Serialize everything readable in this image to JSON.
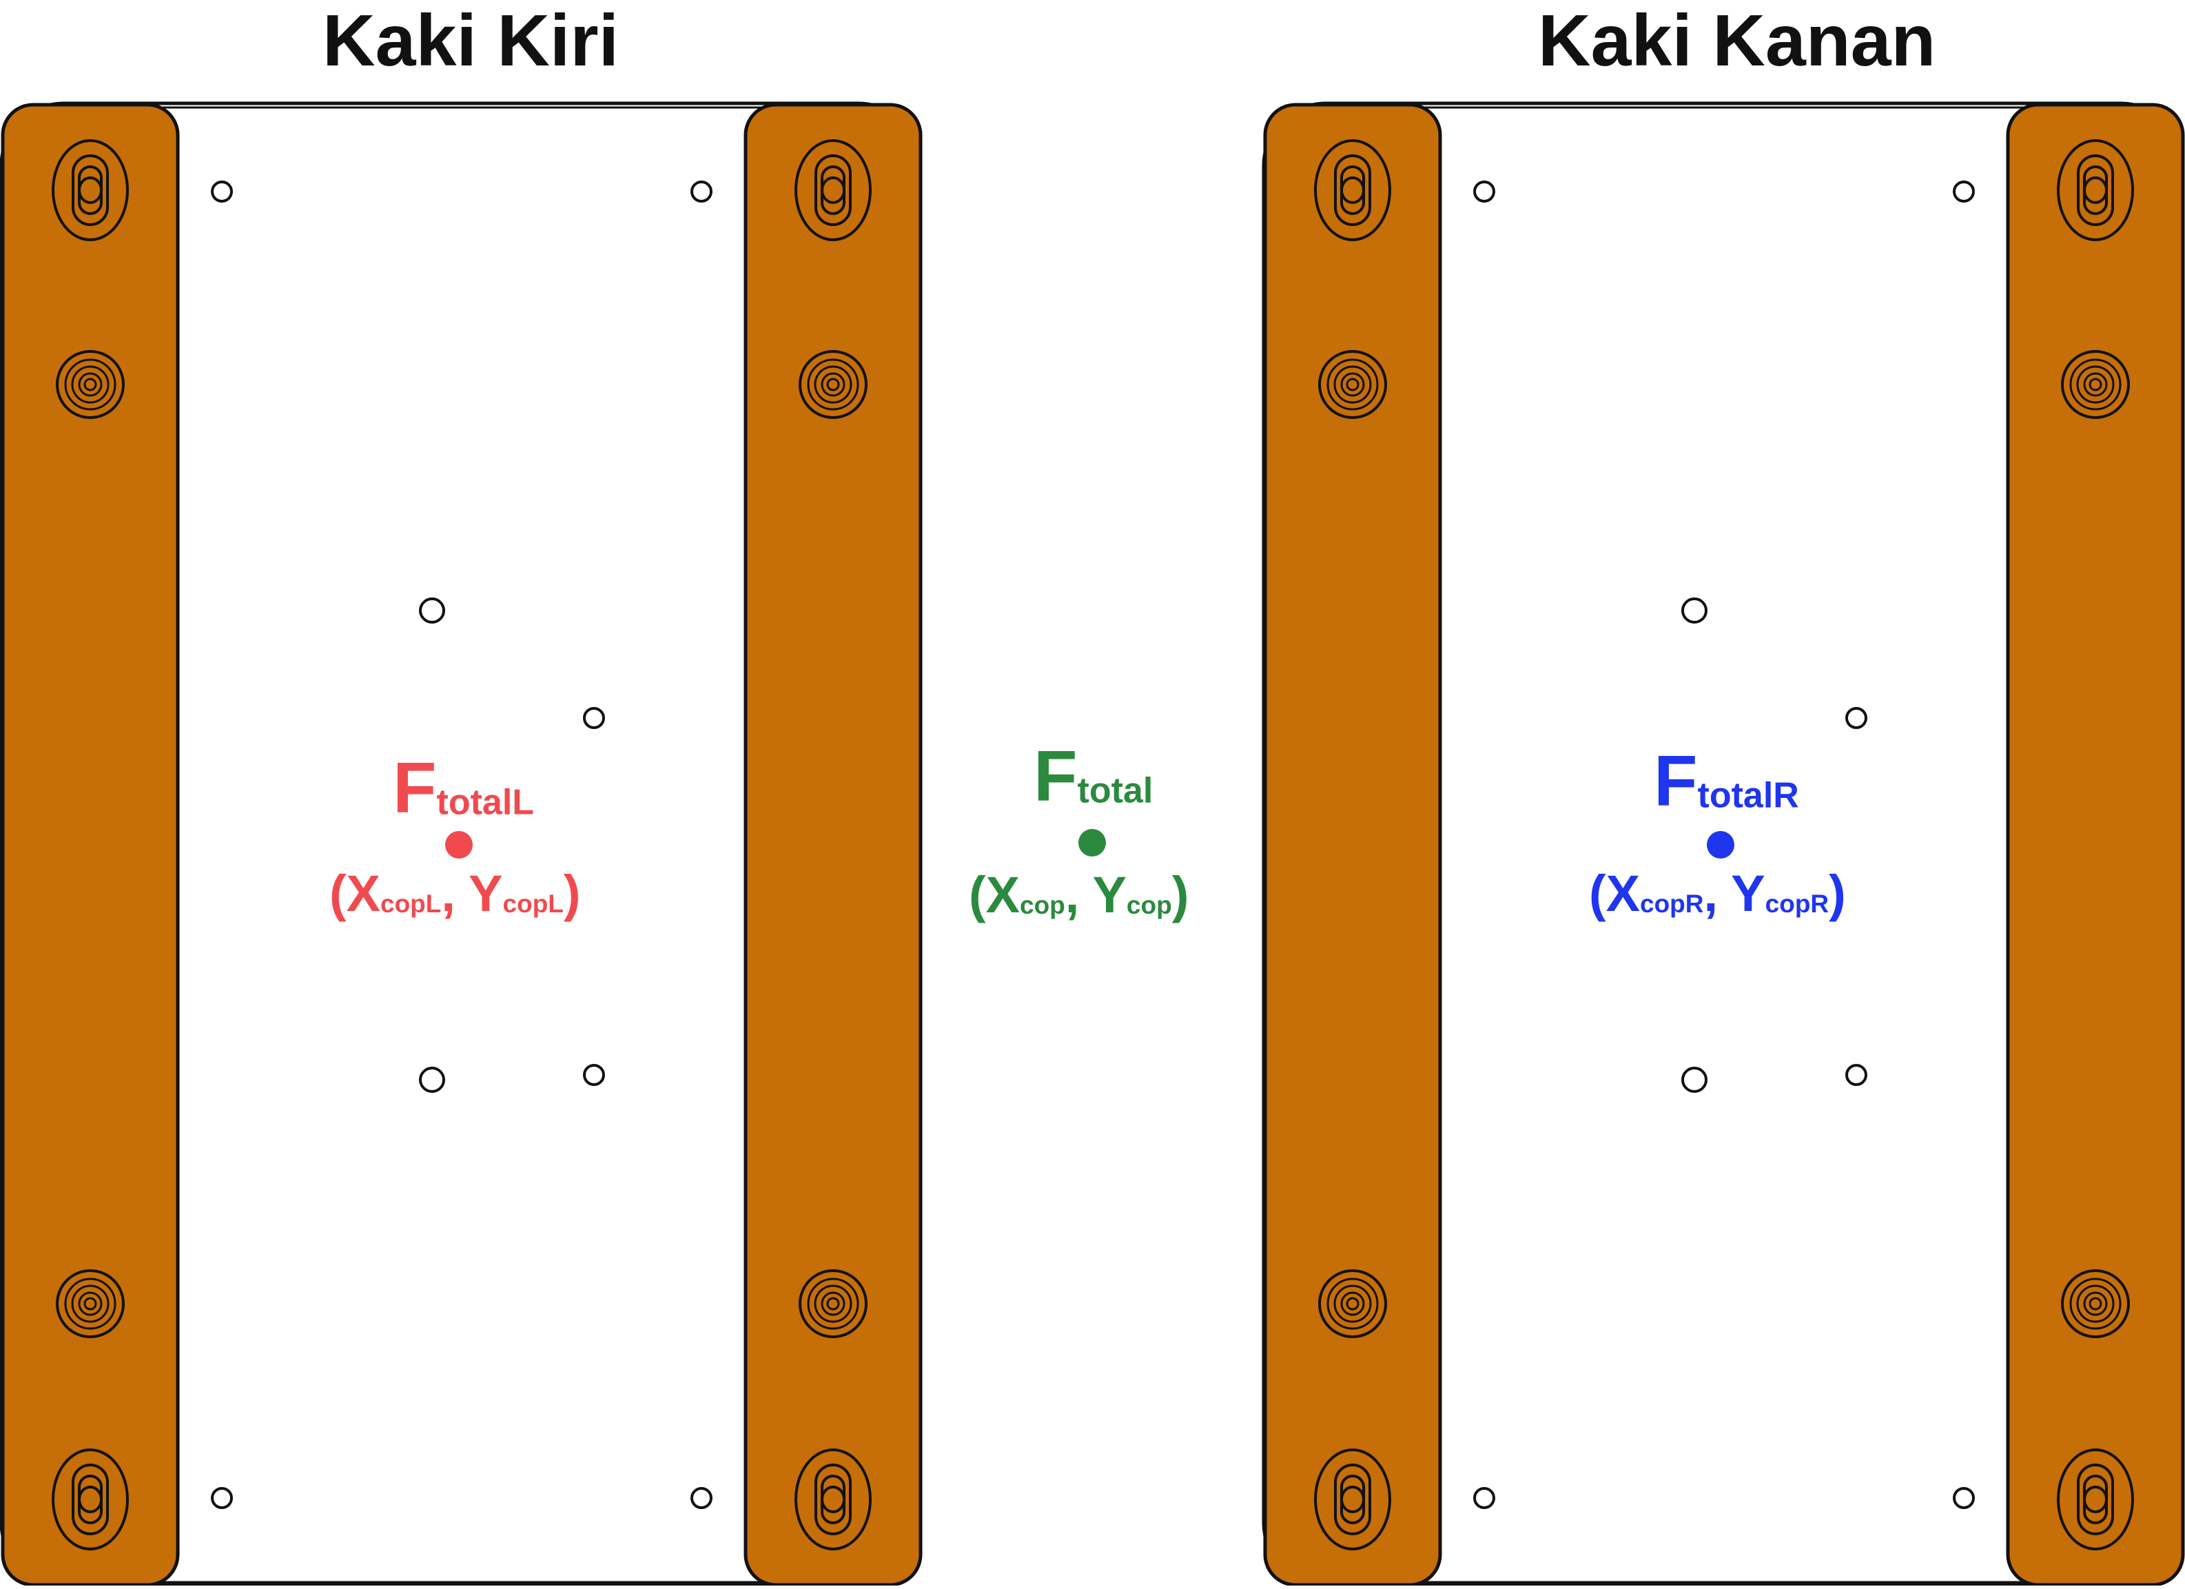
{
  "titles": {
    "left": "Kaki Kiri",
    "right": "Kaki Kanan"
  },
  "labels": {
    "left": {
      "force_main": "F",
      "force_sub": "totalL",
      "coord_open": "(X",
      "coord_x_sub": "copL",
      "coord_mid": ", Y",
      "coord_y_sub": "copL",
      "coord_close": ")"
    },
    "center": {
      "force_main": "F",
      "force_sub": "total",
      "coord_open": "(X",
      "coord_x_sub": "cop",
      "coord_mid": ", Y",
      "coord_y_sub": "cop",
      "coord_close": ")"
    },
    "right": {
      "force_main": "F",
      "force_sub": "totalR",
      "coord_open": "(X",
      "coord_x_sub": "copR",
      "coord_mid": ", Y",
      "coord_y_sub": "copR",
      "coord_close": ")"
    }
  },
  "colors": {
    "left_cop": "#f04a4f",
    "center_cop": "#2b8a3e",
    "right_cop": "#1f35ee",
    "rail": "#c66e07",
    "outline": "#111111",
    "plate": "#ffffff"
  },
  "components": {
    "plates": [
      "left-force-plate",
      "right-force-plate"
    ],
    "rails": [
      "rail-left-outer",
      "rail-left-inner",
      "rail-right-inner",
      "rail-right-outer"
    ],
    "rail_features": [
      "slot-mount",
      "bolt-mount",
      "bolt-mount",
      "slot-mount"
    ],
    "cop_markers": [
      "left-cop-marker",
      "center-cop-marker",
      "right-cop-marker"
    ]
  }
}
